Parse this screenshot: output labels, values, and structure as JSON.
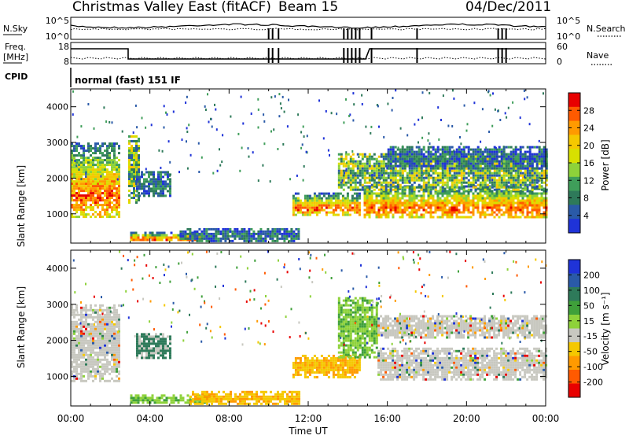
{
  "header": {
    "station": "Christmas Valley East (fitACF)",
    "beam": "Beam 15",
    "date": "04/Dec/2011"
  },
  "strips": {
    "nsky_label": "N.Sky",
    "nsky_ticks": [
      "10^5",
      "10^0"
    ],
    "nsearch_label": "N.Search",
    "nsearch_ticks": [
      "10^5",
      "10^0"
    ],
    "freq_label": "Freq.",
    "freq_unit": "[MHz]",
    "freq_ticks": [
      "18",
      "8"
    ],
    "nave_label": "Nave",
    "nave_ticks": [
      "60",
      "0"
    ],
    "cpid_label": "CPID",
    "cpid_text": "normal (fast) 151 IF"
  },
  "chart_data": [
    {
      "type": "heatmap",
      "name": "power",
      "ylabel": "Slant Range [km]",
      "yticks": [
        "4000",
        "3000",
        "2000",
        "1000"
      ],
      "ylim": [
        180,
        4500
      ],
      "xlim": [
        0,
        24
      ],
      "xticks": [
        "00:00",
        "04:00",
        "08:00",
        "12:00",
        "16:00",
        "20:00",
        "00:00"
      ],
      "colorbar": {
        "label": "Power [dB]",
        "ticks": [
          "28",
          "24",
          "20",
          "16",
          "12",
          "8",
          "4"
        ],
        "colors": [
          "#e80000",
          "#ff5a00",
          "#ff9a00",
          "#f5c800",
          "#d8e000",
          "#8ed23a",
          "#3f9e5a",
          "#2e7a5a",
          "#2a5aa8",
          "#1f33d8"
        ]
      },
      "regions": [
        {
          "x": [
            0,
            2.4
          ],
          "y": [
            900,
            3000
          ],
          "level": "high"
        },
        {
          "x": [
            2.9,
            3.4
          ],
          "y": [
            1300,
            3200
          ],
          "level": "mid"
        },
        {
          "x": [
            3.0,
            6.5
          ],
          "y": [
            250,
            500
          ],
          "level": "high"
        },
        {
          "x": [
            5.5,
            11.5
          ],
          "y": [
            250,
            600
          ],
          "level": "low"
        },
        {
          "x": [
            3.3,
            5.0
          ],
          "y": [
            1500,
            2200
          ],
          "level": "low"
        },
        {
          "x": [
            11.2,
            14.6
          ],
          "y": [
            1000,
            1600
          ],
          "level": "high"
        },
        {
          "x": [
            14.8,
            24
          ],
          "y": [
            900,
            1800
          ],
          "level": "high"
        },
        {
          "x": [
            13.5,
            24
          ],
          "y": [
            1700,
            2700
          ],
          "level": "mid"
        },
        {
          "x": [
            16,
            24
          ],
          "y": [
            2300,
            2900
          ],
          "level": "low"
        }
      ]
    },
    {
      "type": "heatmap",
      "name": "velocity",
      "ylabel": "Slant Range [km]",
      "yticks": [
        "4000",
        "3000",
        "2000",
        "1000"
      ],
      "ylim": [
        180,
        4500
      ],
      "xlim": [
        0,
        24
      ],
      "xticks": [
        "00:00",
        "04:00",
        "08:00",
        "12:00",
        "16:00",
        "20:00",
        "00:00"
      ],
      "xlabel": "Time UT",
      "colorbar": {
        "label": "Velocity [m s⁻¹]",
        "ticks": [
          "200",
          "100",
          "50",
          "15",
          "-15",
          "-50",
          "-100",
          "-200"
        ],
        "colors": [
          "#1f33d8",
          "#2a5aa8",
          "#2e7a5a",
          "#3fa03a",
          "#8ed23a",
          "#c8c8c0",
          "#f5c800",
          "#ff9a00",
          "#ff5a00",
          "#e80000"
        ]
      },
      "regions": [
        {
          "x": [
            0,
            2.4
          ],
          "y": [
            900,
            3000
          ],
          "vel": "near-zero"
        },
        {
          "x": [
            3.3,
            5.0
          ],
          "y": [
            1500,
            2200
          ],
          "vel": "positive"
        },
        {
          "x": [
            3.0,
            7.0
          ],
          "y": [
            250,
            500
          ],
          "vel": "positive-green"
        },
        {
          "x": [
            6.0,
            11.5
          ],
          "y": [
            250,
            600
          ],
          "vel": "negative-yellow"
        },
        {
          "x": [
            11.2,
            14.6
          ],
          "y": [
            1000,
            1600
          ],
          "vel": "negative-yellow"
        },
        {
          "x": [
            13.5,
            15.5
          ],
          "y": [
            1500,
            3200
          ],
          "vel": "positive-green"
        },
        {
          "x": [
            15.5,
            24
          ],
          "y": [
            900,
            1800
          ],
          "vel": "near-zero"
        },
        {
          "x": [
            15.5,
            24
          ],
          "y": [
            2100,
            2700
          ],
          "vel": "near-zero"
        }
      ]
    }
  ]
}
